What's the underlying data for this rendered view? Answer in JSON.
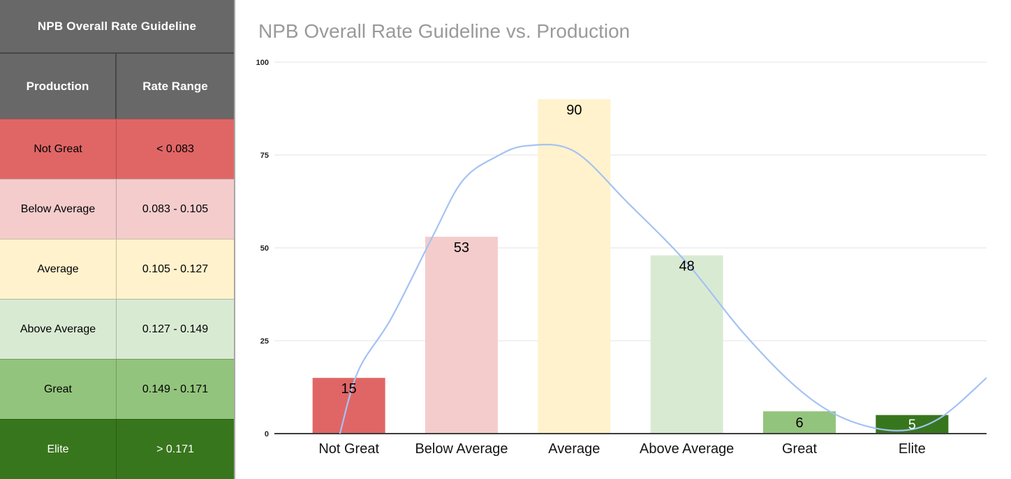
{
  "table": {
    "title": "NPB Overall Rate Guideline",
    "columns": [
      "Production",
      "Rate Range"
    ],
    "rows": [
      {
        "production": "Not Great",
        "rate_range": "< 0.083",
        "bg": "#e06666",
        "text": "#000000"
      },
      {
        "production": "Below Average",
        "rate_range": "0.083 - 0.105",
        "bg": "#f4cccc",
        "text": "#000000"
      },
      {
        "production": "Average",
        "rate_range": "0.105 - 0.127",
        "bg": "#fff2cc",
        "text": "#000000"
      },
      {
        "production": "Above Average",
        "rate_range": "0.127 - 0.149",
        "bg": "#d9ead3",
        "text": "#000000"
      },
      {
        "production": "Great",
        "rate_range": "0.149 - 0.171",
        "bg": "#93c47d",
        "text": "#000000"
      },
      {
        "production": "Elite",
        "rate_range": "> 0.171",
        "bg": "#38761d",
        "text": "#ffffff"
      }
    ]
  },
  "chart_data": {
    "type": "bar",
    "title": "NPB Overall Rate Guideline vs. Production",
    "categories": [
      "Not Great",
      "Below Average",
      "Average",
      "Above Average",
      "Great",
      "Elite"
    ],
    "values": [
      15,
      53,
      90,
      48,
      6,
      5
    ],
    "bar_colors": [
      "#e06666",
      "#f4cccc",
      "#fff2cc",
      "#d9ead3",
      "#93c47d",
      "#38761d"
    ],
    "value_label_colors": [
      "#000000",
      "#000000",
      "#000000",
      "#000000",
      "#000000",
      "#ffffff"
    ],
    "xlabel": "",
    "ylabel": "",
    "ylim": [
      0,
      100
    ],
    "y_ticks": [
      0,
      25,
      50,
      75,
      100
    ],
    "grid": true,
    "legend": "none",
    "trend_line": {
      "type": "smooth-line",
      "color": "#a4c2f4",
      "points_frac_value": [
        [
          0.092,
          0
        ],
        [
          0.118,
          17
        ],
        [
          0.164,
          31
        ],
        [
          0.222,
          53
        ],
        [
          0.264,
          68
        ],
        [
          0.311,
          74.5
        ],
        [
          0.355,
          77.5
        ],
        [
          0.421,
          76
        ],
        [
          0.497,
          62
        ],
        [
          0.579,
          46
        ],
        [
          0.659,
          27
        ],
        [
          0.736,
          12
        ],
        [
          0.801,
          4
        ],
        [
          0.874,
          0.8
        ],
        [
          0.933,
          4
        ],
        [
          1.0,
          15
        ]
      ]
    },
    "colors": {
      "grid_line": "#e3e3e3",
      "axis_line": "#3d3d3d",
      "title_text": "#9a9a9a",
      "tick_text": "#222222",
      "category_text": "#141414"
    }
  }
}
